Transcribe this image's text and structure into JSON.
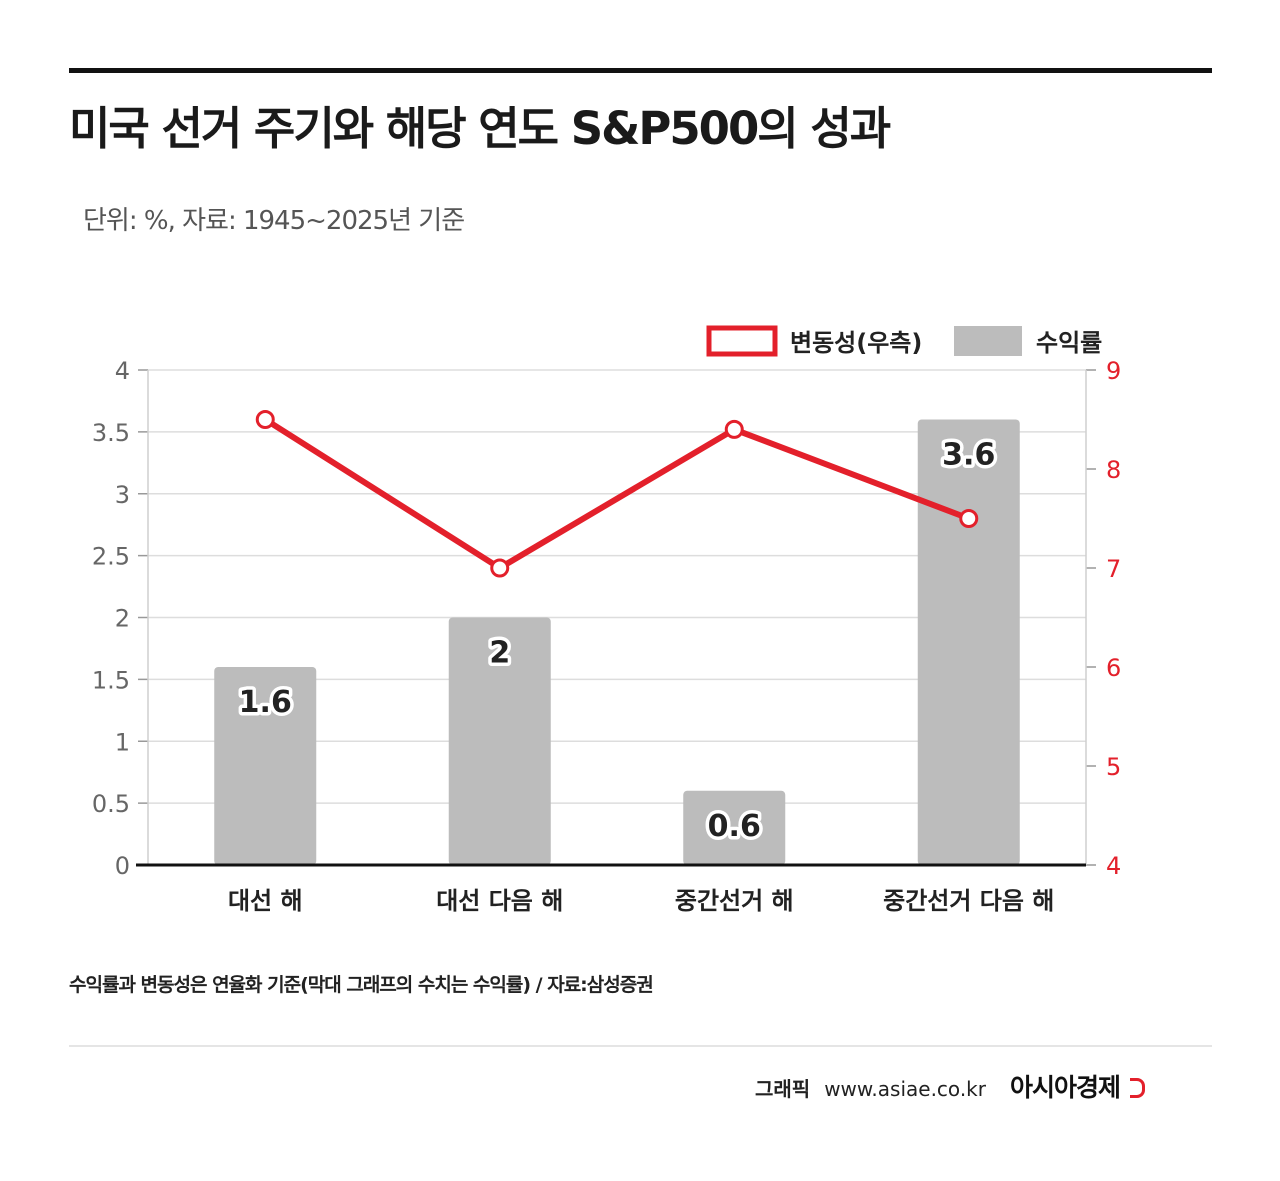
{
  "title": "미국 선거 주기와 해당 연도 S&P500의 성과",
  "subtitle": "단위: %, 자료: 1945~2025년 기준",
  "footnote": "수익률과 변동성은 연율화 기준(막대 그래프의 수치는 수익률) / 자료:삼성증권",
  "credit": {
    "label": "그래픽",
    "url": "www.asiae.co.kr",
    "brand": "아시아경제"
  },
  "colors": {
    "bar": "#bcbcbc",
    "line": "#e3202b",
    "grid": "#dddddd"
  },
  "chart_data": {
    "type": "bar",
    "categories": [
      "대선 해",
      "대선 다음 해",
      "중간선거 해",
      "중간선거 다음 해"
    ],
    "series": [
      {
        "name": "수익률",
        "type": "bar",
        "axis": "left",
        "values": [
          1.6,
          2,
          0.6,
          3.6
        ],
        "labels": [
          "1.6",
          "2",
          "0.6",
          "3.6"
        ]
      },
      {
        "name": "변동성(우측)",
        "type": "line",
        "axis": "right",
        "values": [
          8.5,
          7.0,
          8.4,
          7.5
        ]
      }
    ],
    "y_left": {
      "min": 0,
      "max": 4,
      "ticks": [
        "0",
        "0.5",
        "1",
        "1.5",
        "2",
        "2.5",
        "3",
        "3.5",
        "4"
      ]
    },
    "y_right": {
      "min": 4,
      "max": 9,
      "ticks": [
        "4",
        "5",
        "6",
        "7",
        "8",
        "9"
      ]
    },
    "grid": true,
    "legend_position": "top-right"
  }
}
